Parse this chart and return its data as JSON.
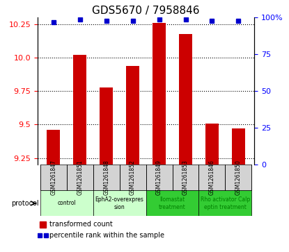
{
  "title": "GDS5670 / 7958846",
  "samples": [
    "GSM1261847",
    "GSM1261851",
    "GSM1261848",
    "GSM1261852",
    "GSM1261849",
    "GSM1261853",
    "GSM1261846",
    "GSM1261850"
  ],
  "transformed_count": [
    9.46,
    10.02,
    9.78,
    9.94,
    10.26,
    10.18,
    9.51,
    9.47
  ],
  "percentile_rank": [
    97,
    99,
    98,
    98,
    99,
    99,
    98,
    98
  ],
  "protocols": [
    {
      "label": "control",
      "samples": [
        0,
        1
      ],
      "color": "#ccffcc"
    },
    {
      "label": "EphA2-overexpres\nsion",
      "samples": [
        2,
        3
      ],
      "color": "#ccffcc"
    },
    {
      "label": "Ilomastat\ntreatment",
      "samples": [
        4,
        5
      ],
      "color": "#33cc33"
    },
    {
      "label": "Rho activator Calp\neptin treatment",
      "samples": [
        6,
        7
      ],
      "color": "#33cc33"
    }
  ],
  "ylim_left": [
    9.2,
    10.3
  ],
  "ylim_right": [
    0,
    100
  ],
  "yticks_left": [
    9.25,
    9.5,
    9.75,
    10.0,
    10.25
  ],
  "yticks_right": [
    0,
    25,
    50,
    75,
    100
  ],
  "bar_color": "#cc0000",
  "dot_color": "#0000cc",
  "background_color": "#ffffff",
  "grid_color": "#000000"
}
